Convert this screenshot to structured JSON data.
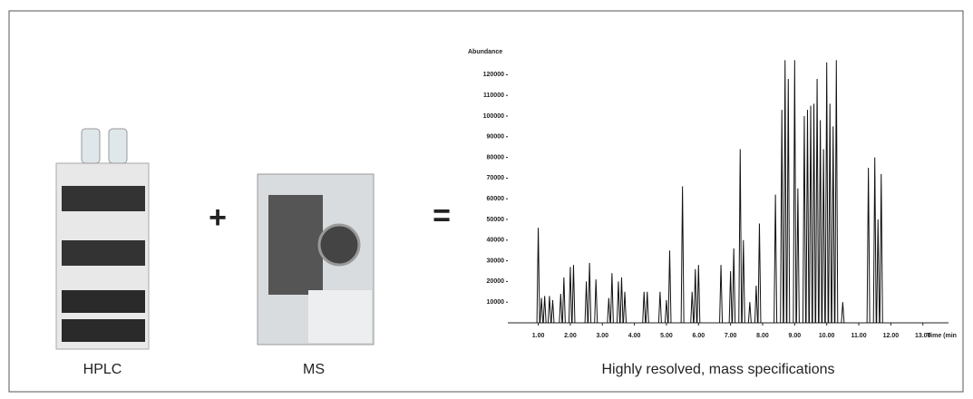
{
  "labels": {
    "hplc": "HPLC",
    "ms": "MS",
    "result": "Highly resolved, mass specifications"
  },
  "operators": {
    "plus": "+",
    "equals": "="
  },
  "chromatogram": {
    "y_label": "Abundance",
    "x_label": "Time (min",
    "xlim": [
      0.05,
      13.8
    ],
    "ylim": [
      0,
      125000
    ],
    "yticks": [
      10000,
      20000,
      30000,
      40000,
      50000,
      60000,
      70000,
      80000,
      90000,
      100000,
      110000,
      120000
    ],
    "xticks": [
      {
        "value": 1,
        "label": "1.00"
      },
      {
        "value": 2,
        "label": "2.00"
      },
      {
        "value": 3,
        "label": "3.00"
      },
      {
        "value": 4,
        "label": "4.00"
      },
      {
        "value": 5,
        "label": "5.00"
      },
      {
        "value": 6,
        "label": "6.00"
      },
      {
        "value": 7,
        "label": "7.00"
      },
      {
        "value": 8,
        "label": "8.00"
      },
      {
        "value": 9,
        "label": "9.00"
      },
      {
        "value": 10,
        "label": "10.00"
      },
      {
        "value": 11,
        "label": "11.00"
      },
      {
        "value": 12,
        "label": "12.00"
      },
      {
        "value": 13,
        "label": "13.00"
      }
    ],
    "peaks_x": [
      1.0,
      1.1,
      1.2,
      1.35,
      1.45,
      1.7,
      1.8,
      2.0,
      2.1,
      2.5,
      2.6,
      2.8,
      3.2,
      3.3,
      3.5,
      3.6,
      3.7,
      4.3,
      4.4,
      4.8,
      5.0,
      5.1,
      5.5,
      5.8,
      5.9,
      6.0,
      6.7,
      7.0,
      7.1,
      7.3,
      7.4,
      7.6,
      7.8,
      7.9,
      8.4,
      8.6,
      8.7,
      8.8,
      9.0,
      9.1,
      9.3,
      9.4,
      9.5,
      9.6,
      9.7,
      9.8,
      9.9,
      10.0,
      10.1,
      10.2,
      10.3,
      10.5,
      11.3,
      11.5,
      11.6,
      11.7
    ],
    "peaks_y": [
      46000,
      12000,
      13000,
      13000,
      11000,
      14000,
      22000,
      27000,
      28000,
      20000,
      29000,
      21000,
      12000,
      24000,
      20000,
      22000,
      15000,
      15000,
      15000,
      15000,
      11000,
      35000,
      66000,
      15000,
      26000,
      28000,
      28000,
      25000,
      36000,
      84000,
      40000,
      10000,
      18000,
      48000,
      62000,
      103000,
      127000,
      118000,
      127000,
      65000,
      100000,
      103000,
      105000,
      106000,
      118000,
      98000,
      84000,
      126000,
      106000,
      95000,
      127000,
      10000,
      75000,
      80000,
      50000,
      72000
    ]
  }
}
